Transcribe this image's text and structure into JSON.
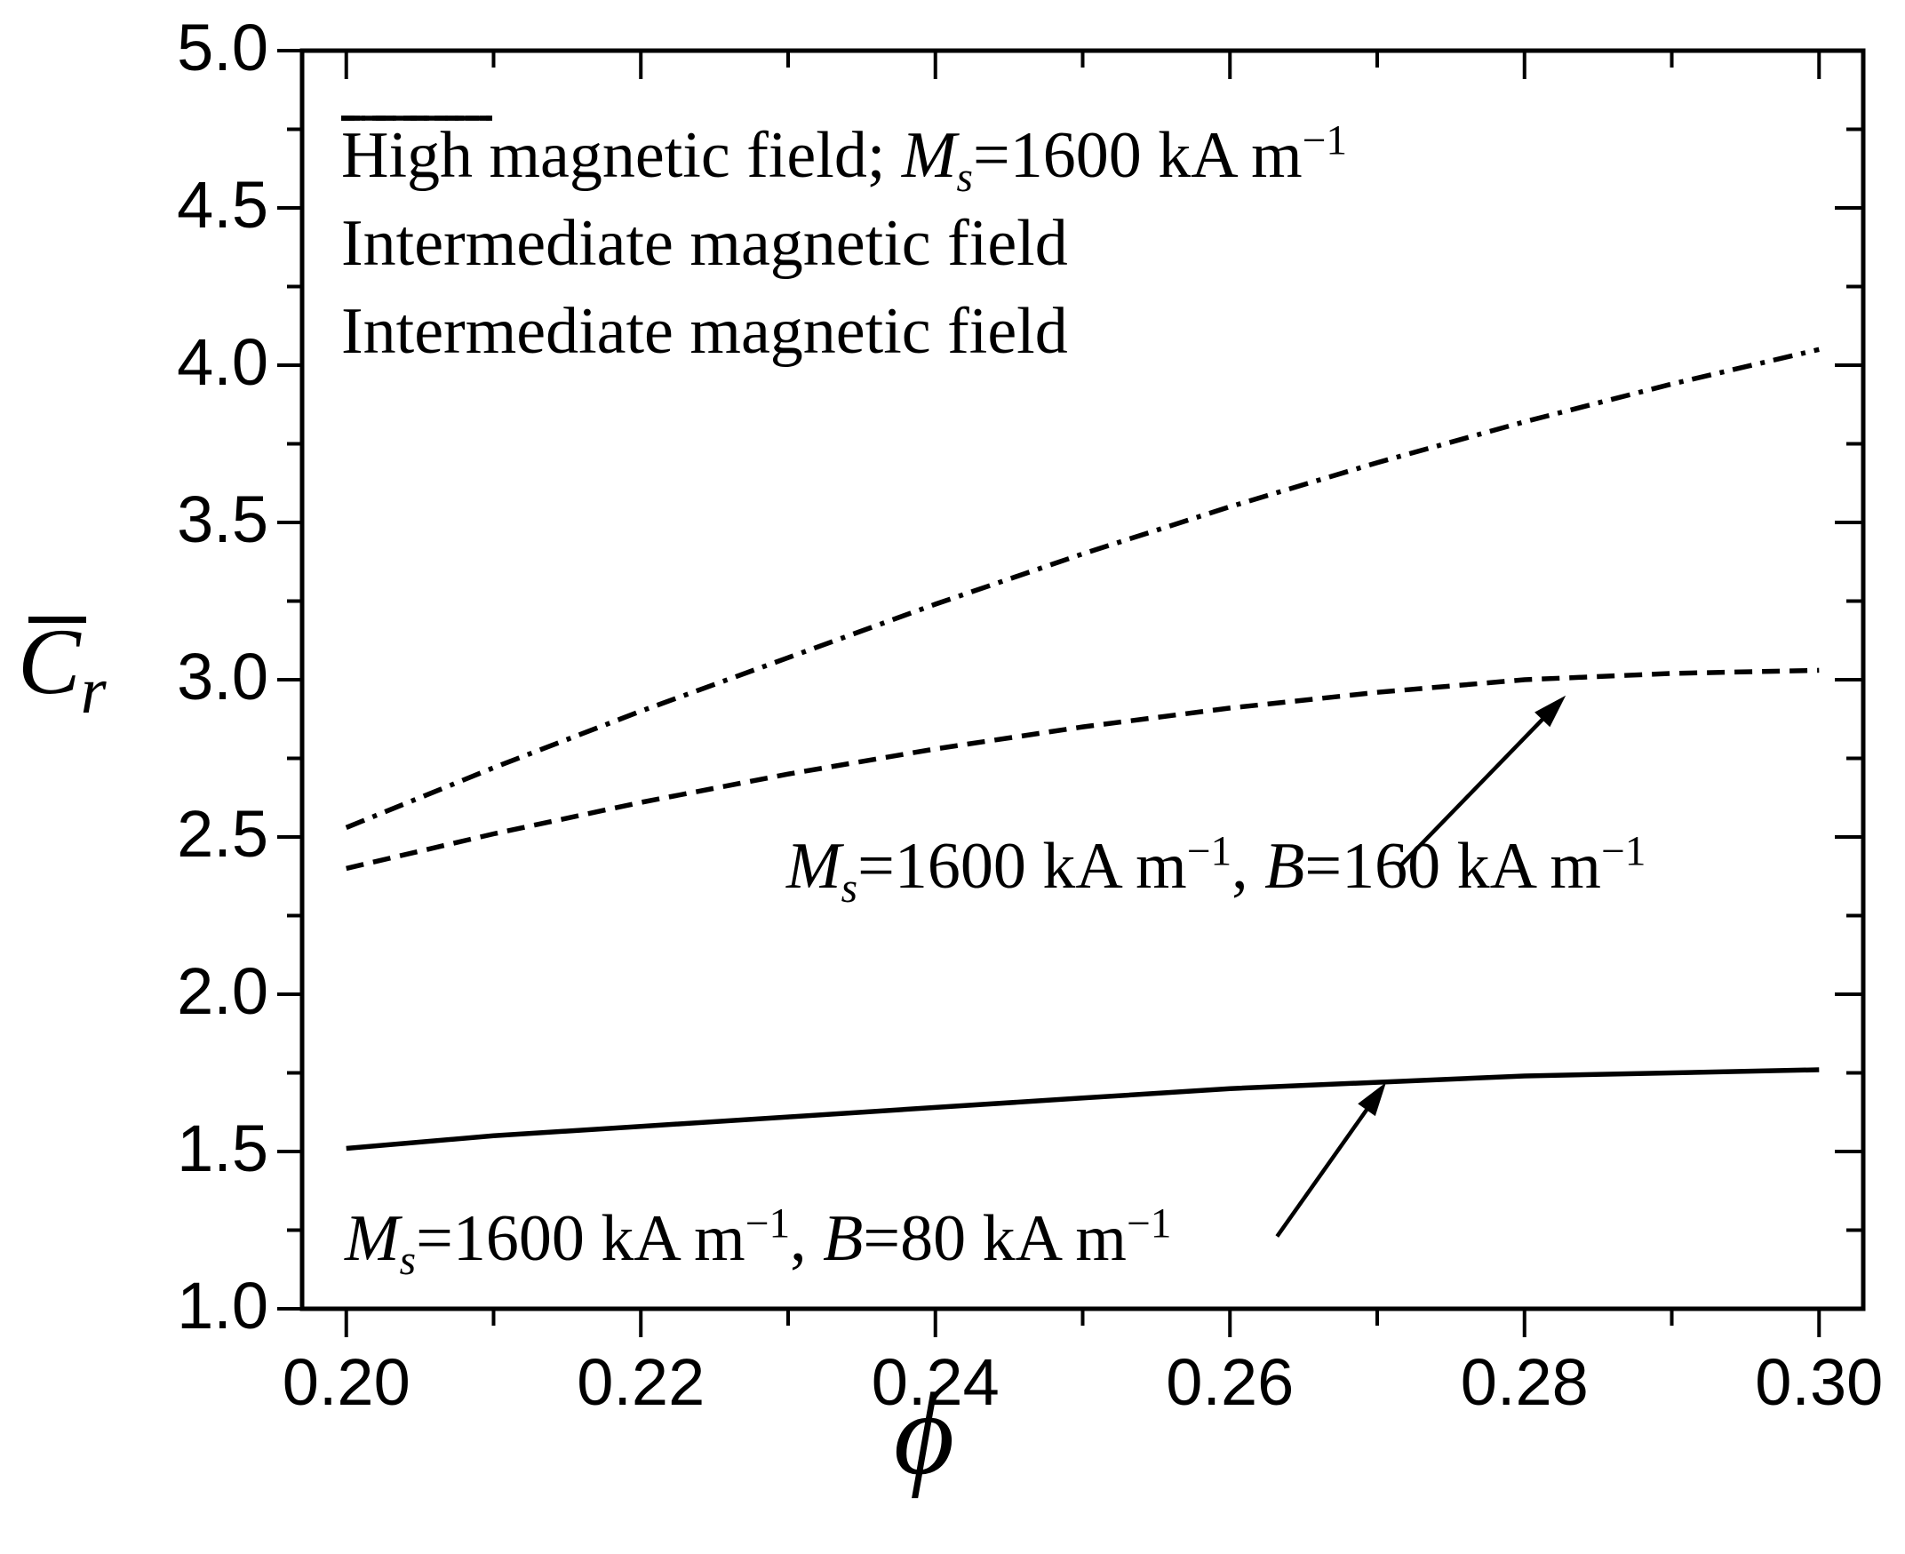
{
  "chart_data": {
    "type": "line",
    "title": "",
    "xlabel": "ϕ",
    "ylabel_main": "C",
    "ylabel_sub": "r",
    "background": "#ffffff",
    "line_color": "#000000",
    "grid": false,
    "legend_position": "top-left-inside",
    "x_axis": {
      "min_shown": 0.197,
      "max_shown": 0.303,
      "major_ticks": [
        "0.20",
        "0.22",
        "0.24",
        "0.26",
        "0.28",
        "0.30"
      ],
      "minor_ticks": [
        0.21,
        0.23,
        0.25,
        0.27,
        0.29
      ]
    },
    "y_axis": {
      "min": 1.0,
      "max": 5.0,
      "major_ticks": [
        "1.0",
        "1.5",
        "2.0",
        "2.5",
        "3.0",
        "3.5",
        "4.0",
        "4.5",
        "5.0"
      ],
      "minor_ticks": [
        1.25,
        1.75,
        2.25,
        2.75,
        3.25,
        3.75,
        4.25,
        4.75
      ]
    },
    "x": [
      0.2,
      0.21,
      0.22,
      0.23,
      0.24,
      0.25,
      0.26,
      0.27,
      0.28,
      0.29,
      0.3
    ],
    "series": [
      {
        "name": "curve-high-magnetic-field",
        "line_style": "dash-dot",
        "legend_segments": [
          {
            "t": "High magnetic field; "
          },
          {
            "t": "M",
            "i": true
          },
          {
            "t": "s",
            "i": true,
            "sub": true
          },
          {
            "t": "=1600 kA m"
          },
          {
            "t": "−1",
            "sup": true
          }
        ],
        "values": [
          2.53,
          2.72,
          2.9,
          3.07,
          3.24,
          3.4,
          3.55,
          3.69,
          3.82,
          3.94,
          4.05
        ]
      },
      {
        "name": "curve-intermediate-b160",
        "line_style": "dashed",
        "legend_segments": [
          {
            "t": "Intermediate magnetic field"
          }
        ],
        "values": [
          2.4,
          2.51,
          2.61,
          2.7,
          2.78,
          2.85,
          2.91,
          2.96,
          3.0,
          3.02,
          3.03
        ]
      },
      {
        "name": "curve-intermediate-b80",
        "line_style": "solid",
        "legend_segments": [
          {
            "t": "Intermediate magnetic field"
          }
        ],
        "values": [
          1.51,
          1.55,
          1.58,
          1.61,
          1.64,
          1.67,
          1.7,
          1.72,
          1.74,
          1.75,
          1.76
        ]
      }
    ],
    "annotations": [
      {
        "id": "b160",
        "segments": [
          {
            "t": "M",
            "i": true
          },
          {
            "t": "s",
            "i": true,
            "sub": true
          },
          {
            "t": "=1600 kA m"
          },
          {
            "t": "−1",
            "sup": true
          },
          {
            "t": ", "
          },
          {
            "t": "B",
            "i": true
          },
          {
            "t": "=160 kA m"
          },
          {
            "t": "−1",
            "sup": true
          }
        ],
        "arrow": {
          "from": [
            0.2716,
            2.41
          ],
          "to": [
            0.2828,
            2.95
          ]
        }
      },
      {
        "id": "b80",
        "segments": [
          {
            "t": "M",
            "i": true
          },
          {
            "t": "s",
            "i": true,
            "sub": true
          },
          {
            "t": "=1600 kA m"
          },
          {
            "t": "−1",
            "sup": true
          },
          {
            "t": ", "
          },
          {
            "t": "B",
            "i": true
          },
          {
            "t": "=80 kA m"
          },
          {
            "t": "−1",
            "sup": true
          }
        ],
        "arrow": {
          "from": [
            0.2632,
            1.23
          ],
          "to": [
            0.2706,
            1.72
          ]
        }
      }
    ]
  }
}
